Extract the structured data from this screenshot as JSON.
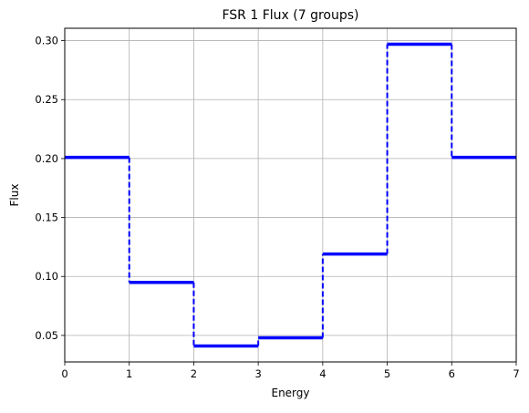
{
  "chart_data": {
    "type": "line",
    "style": "step",
    "title": "FSR 1 Flux (7 groups)",
    "xlabel": "Energy",
    "ylabel": "Flux",
    "xlim": [
      0,
      7
    ],
    "ylim": [
      0.0275,
      0.3105
    ],
    "xticks": [
      0,
      1,
      2,
      3,
      4,
      5,
      6,
      7
    ],
    "yticks": [
      0.05,
      0.1,
      0.15,
      0.2,
      0.25,
      0.3
    ],
    "grid": true,
    "line_color": "#0000ff",
    "series": [
      {
        "groups": [
          {
            "x0": 0,
            "x1": 1,
            "value": 0.201
          },
          {
            "x0": 1,
            "x1": 2,
            "value": 0.095
          },
          {
            "x0": 2,
            "x1": 3,
            "value": 0.041
          },
          {
            "x0": 3,
            "x1": 4,
            "value": 0.048
          },
          {
            "x0": 4,
            "x1": 5,
            "value": 0.119
          },
          {
            "x0": 5,
            "x1": 6,
            "value": 0.297
          },
          {
            "x0": 6,
            "x1": 7,
            "value": 0.201
          }
        ]
      }
    ]
  }
}
